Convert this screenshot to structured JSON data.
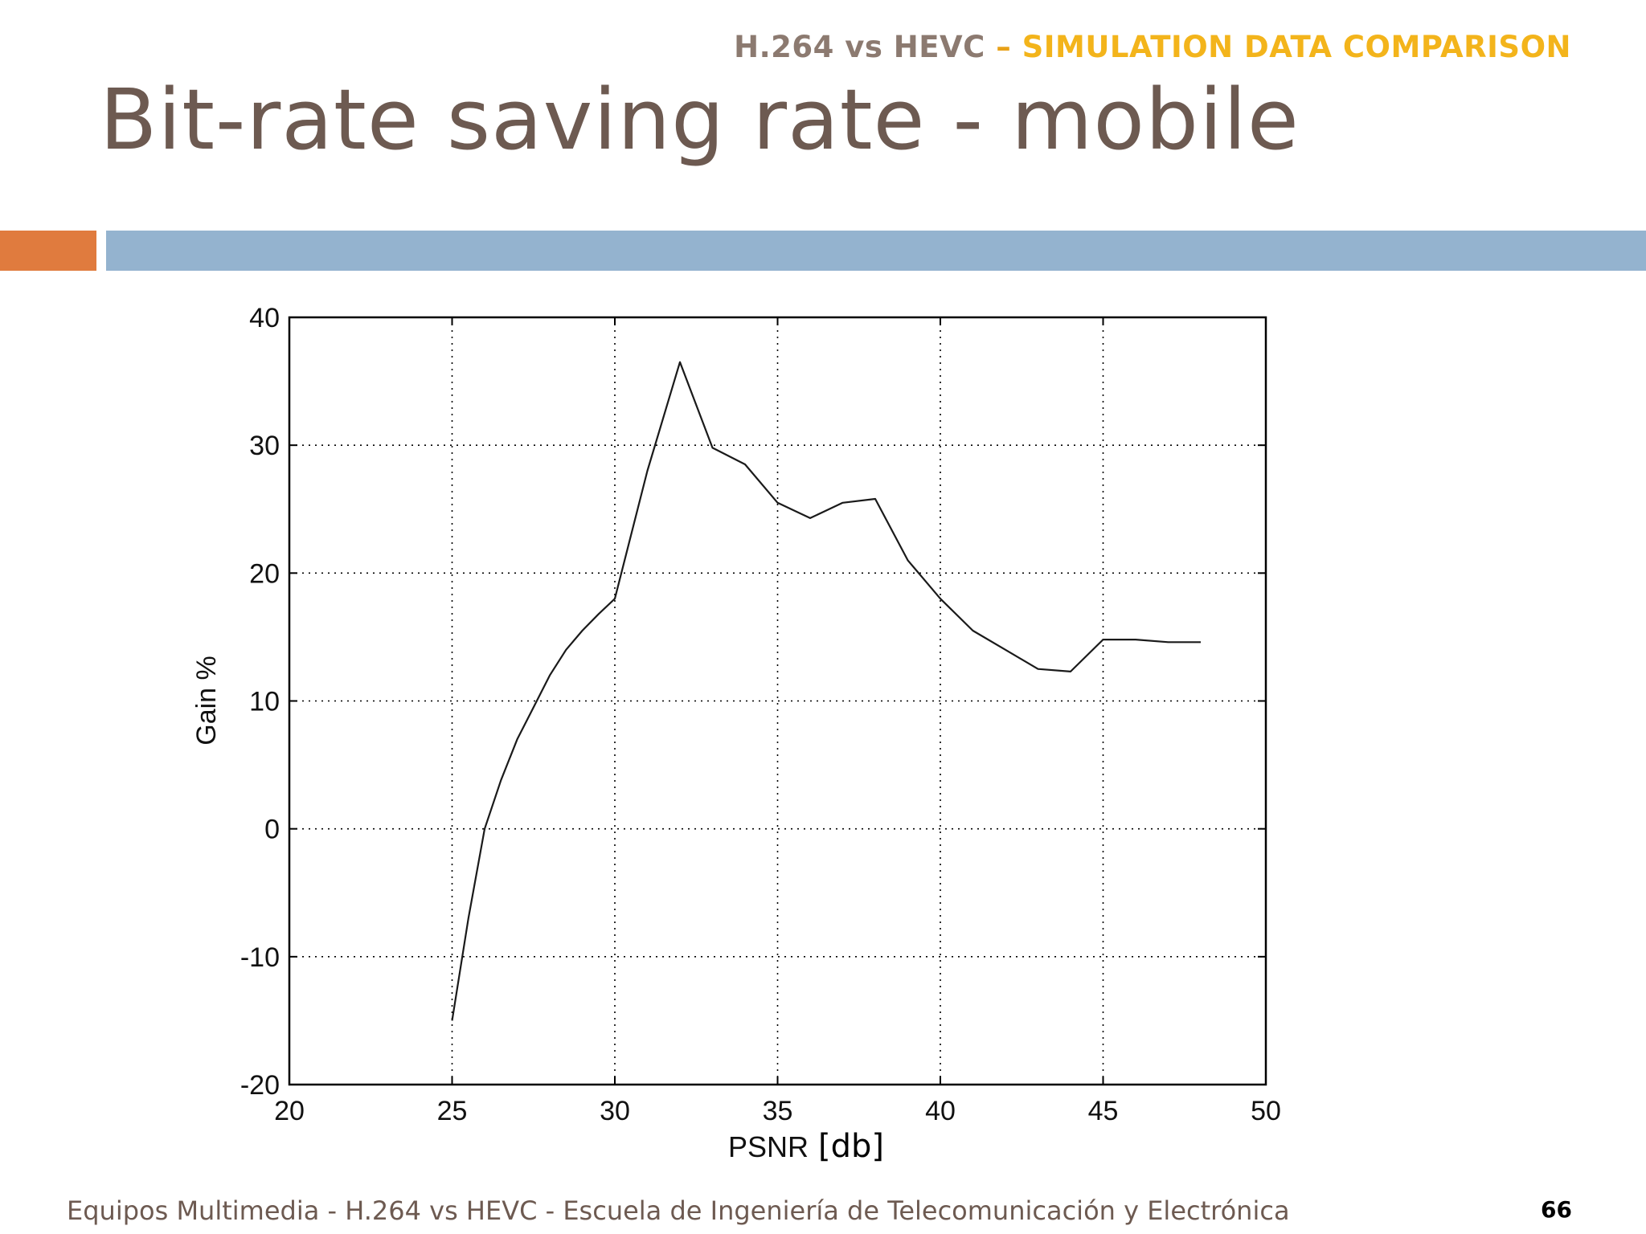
{
  "header": {
    "prefix": "H.264 vs HEVC",
    "separator": " – ",
    "suffix": "SIMULATION DATA COMPARISON"
  },
  "title": "Bit-rate saving rate - mobile",
  "footer": {
    "text": "Equipos Multimedia - H.264 vs HEVC - Escuela de Ingeniería de Telecomunicación y Electrónica",
    "page_number": "66"
  },
  "colors": {
    "title": "#6d5a51",
    "header_accent": "#f3b41b",
    "bar_orange": "#e07b3e",
    "bar_blue": "#94b3cf"
  },
  "chart_data": {
    "type": "line",
    "title": "",
    "xlabel": "PSNR",
    "xlabel_unit": "[db]",
    "ylabel": "Gain %",
    "xlim": [
      20,
      50
    ],
    "ylim": [
      -20,
      40
    ],
    "xticks": [
      "20",
      "25",
      "30",
      "35",
      "40",
      "45",
      "50"
    ],
    "yticks": [
      "-20",
      "-10",
      "0",
      "10",
      "20",
      "30",
      "40"
    ],
    "grid": true,
    "series": [
      {
        "x": [
          25,
          25.5,
          26,
          26.5,
          27,
          27.5,
          28,
          28.5,
          29,
          29.5,
          30,
          31,
          32,
          33,
          34,
          35,
          36,
          37,
          38,
          39,
          40,
          41,
          42,
          43,
          44,
          45,
          46,
          47,
          48
        ],
        "y": [
          -15,
          -7,
          0,
          3.8,
          7,
          9.5,
          12,
          14,
          15.5,
          16.8,
          18,
          28,
          36.5,
          29.8,
          28.5,
          25.5,
          24.3,
          25.5,
          25.8,
          21,
          18,
          15.5,
          14,
          12.5,
          12.3,
          14.8,
          14.8,
          14.6,
          14.6
        ]
      }
    ]
  }
}
